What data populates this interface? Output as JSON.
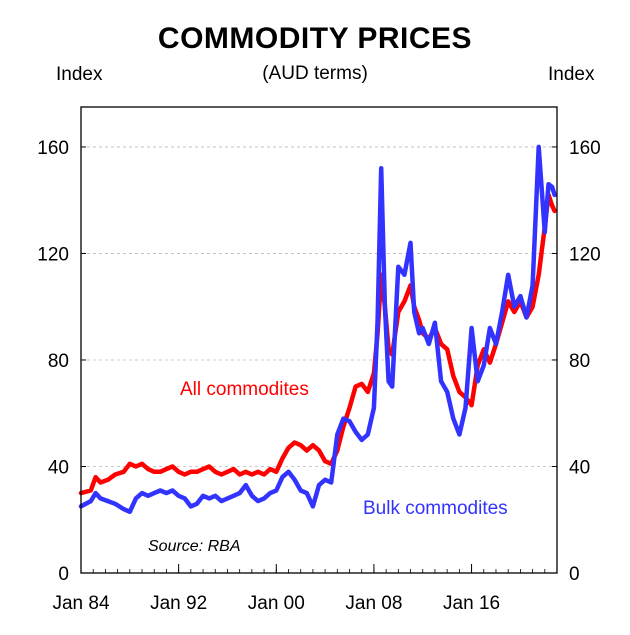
{
  "chart_data": {
    "type": "line",
    "title": "COMMODITY PRICES",
    "subtitle": "(AUD terms)",
    "ylabel_left": "Index",
    "ylabel_right": "Index",
    "ylim": [
      0,
      175
    ],
    "yticks": [
      0,
      40,
      80,
      120,
      160
    ],
    "xlim": [
      1984.0,
      2023.0
    ],
    "xticks": [
      {
        "x": 1984,
        "label": "Jan 84"
      },
      {
        "x": 1992,
        "label": "Jan 92"
      },
      {
        "x": 2000,
        "label": "Jan 00"
      },
      {
        "x": 2008,
        "label": "Jan 08"
      },
      {
        "x": 2016,
        "label": "Jan 16"
      }
    ],
    "grid": true,
    "source": "Source: RBA",
    "series": [
      {
        "name": "All commodites",
        "color": "#ff0000",
        "x": [
          1984.0,
          1984.8,
          1985.2,
          1985.6,
          1986.2,
          1986.8,
          1987.5,
          1988.0,
          1988.5,
          1989.0,
          1989.5,
          1990.0,
          1990.5,
          1991.0,
          1991.5,
          1992.0,
          1992.5,
          1993.0,
          1993.5,
          1994.0,
          1994.5,
          1995.0,
          1995.5,
          1996.0,
          1996.5,
          1997.0,
          1997.5,
          1998.0,
          1998.5,
          1999.0,
          1999.5,
          2000.0,
          2000.5,
          2001.0,
          2001.5,
          2002.0,
          2002.5,
          2003.0,
          2003.5,
          2004.0,
          2004.5,
          2005.0,
          2005.5,
          2006.0,
          2006.5,
          2007.0,
          2007.5,
          2008.0,
          2008.3,
          2008.6,
          2008.9,
          2009.2,
          2009.5,
          2010.0,
          2010.5,
          2011.0,
          2011.3,
          2011.7,
          2012.0,
          2012.5,
          2013.0,
          2013.5,
          2014.0,
          2014.5,
          2015.0,
          2015.5,
          2016.0,
          2016.5,
          2017.0,
          2017.5,
          2018.0,
          2018.5,
          2019.0,
          2019.5,
          2020.0,
          2020.5,
          2021.0,
          2021.5,
          2022.0,
          2022.3,
          2022.6,
          2022.8
        ],
        "y": [
          30,
          31,
          36,
          34,
          35,
          37,
          38,
          41,
          40,
          41,
          39,
          38,
          38,
          39,
          40,
          38,
          37,
          38,
          38,
          39,
          40,
          38,
          37,
          38,
          39,
          37,
          38,
          37,
          38,
          37,
          39,
          38,
          43,
          47,
          49,
          48,
          46,
          48,
          46,
          42,
          41,
          46,
          55,
          62,
          70,
          71,
          68,
          75,
          90,
          112,
          100,
          84,
          82,
          98,
          102,
          108,
          100,
          95,
          90,
          88,
          92,
          86,
          84,
          74,
          68,
          66,
          63,
          78,
          84,
          79,
          86,
          94,
          102,
          98,
          102,
          96,
          100,
          112,
          130,
          142,
          138,
          136
        ]
      },
      {
        "name": "Bulk commodites",
        "color": "#3333ff",
        "x": [
          1984.0,
          1984.8,
          1985.2,
          1985.6,
          1986.2,
          1986.8,
          1987.5,
          1988.0,
          1988.5,
          1989.0,
          1989.5,
          1990.0,
          1990.5,
          1991.0,
          1991.5,
          1992.0,
          1992.5,
          1993.0,
          1993.5,
          1994.0,
          1994.5,
          1995.0,
          1995.5,
          1996.0,
          1996.5,
          1997.0,
          1997.5,
          1998.0,
          1998.5,
          1999.0,
          1999.5,
          2000.0,
          2000.5,
          2001.0,
          2001.5,
          2002.0,
          2002.5,
          2003.0,
          2003.5,
          2004.0,
          2004.5,
          2005.0,
          2005.5,
          2006.0,
          2006.5,
          2007.0,
          2007.5,
          2008.0,
          2008.3,
          2008.6,
          2008.9,
          2009.2,
          2009.5,
          2010.0,
          2010.5,
          2011.0,
          2011.3,
          2011.7,
          2012.0,
          2012.5,
          2013.0,
          2013.5,
          2014.0,
          2014.5,
          2015.0,
          2015.5,
          2016.0,
          2016.5,
          2017.0,
          2017.5,
          2018.0,
          2018.5,
          2019.0,
          2019.5,
          2020.0,
          2020.5,
          2021.0,
          2021.5,
          2022.0,
          2022.3,
          2022.6,
          2022.8
        ],
        "y": [
          25,
          27,
          30,
          28,
          27,
          26,
          24,
          23,
          28,
          30,
          29,
          30,
          31,
          30,
          31,
          29,
          28,
          25,
          26,
          29,
          28,
          29,
          27,
          28,
          29,
          30,
          33,
          29,
          27,
          28,
          30,
          31,
          36,
          38,
          35,
          31,
          30,
          25,
          33,
          35,
          34,
          52,
          58,
          57,
          53,
          50,
          52,
          62,
          95,
          152,
          100,
          72,
          70,
          115,
          112,
          124,
          98,
          90,
          92,
          86,
          94,
          72,
          68,
          58,
          52,
          62,
          92,
          72,
          78,
          92,
          86,
          98,
          112,
          100,
          104,
          96,
          108,
          160,
          128,
          146,
          145,
          142
        ]
      }
    ]
  }
}
